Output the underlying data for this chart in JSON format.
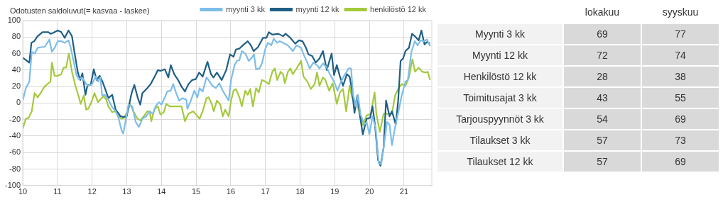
{
  "chart_data": [
    {
      "type": "line",
      "title": "Odotusten saldoluvut(= kasvaa - laskee)",
      "xlim": [
        10,
        21.8
      ],
      "xticks": [
        10,
        11,
        12,
        13,
        14,
        15,
        16,
        17,
        18,
        19,
        20,
        21
      ],
      "ylim": [
        -100,
        100
      ],
      "yticks": [
        -100,
        -80,
        -60,
        -40,
        -20,
        0,
        20,
        40,
        60,
        80,
        100
      ],
      "grid": true,
      "legend": "top",
      "series": [
        {
          "name": "myynti 3 kk",
          "color": "#7dbde8",
          "x": [
            10.0,
            10.09,
            10.19,
            10.26,
            10.35,
            10.43,
            10.57,
            10.63,
            10.74,
            10.77,
            10.84,
            10.92,
            11.01,
            11.11,
            11.21,
            11.32,
            11.38,
            11.45,
            11.55,
            11.62,
            11.72,
            11.83,
            11.89,
            12.0,
            12.1,
            12.17,
            12.24,
            12.29,
            12.37,
            12.47,
            12.58,
            12.68,
            12.75,
            12.85,
            12.9,
            12.99,
            13.05,
            13.16,
            13.26,
            13.35,
            13.45,
            13.56,
            13.66,
            13.76,
            13.83,
            13.93,
            14.0,
            14.1,
            14.17,
            14.27,
            14.34,
            14.41,
            14.51,
            14.61,
            14.72,
            14.75,
            14.85,
            14.95,
            15.04,
            15.1,
            15.19,
            15.3,
            15.36,
            15.47,
            15.57,
            15.67,
            15.77,
            15.84,
            15.94,
            16.01,
            16.11,
            16.18,
            16.25,
            16.32,
            16.42,
            16.52,
            16.59,
            16.67,
            16.73,
            16.83,
            16.9,
            17.0,
            17.07,
            17.17,
            17.24,
            17.34,
            17.41,
            17.51,
            17.65,
            17.79,
            17.9,
            18.03,
            18.1,
            18.21,
            18.28,
            18.38,
            18.49,
            18.56,
            18.66,
            18.77,
            18.87,
            18.98,
            19.08,
            19.15,
            19.24,
            19.33,
            19.4,
            19.47,
            19.53,
            19.61,
            19.67,
            19.74,
            19.85,
            19.92,
            20.0,
            20.09,
            20.18,
            20.27,
            20.34,
            20.42,
            20.51,
            20.58,
            20.65,
            20.74,
            20.83,
            20.93,
            21.04,
            21.11,
            21.21,
            21.31,
            21.39,
            21.48,
            21.57,
            21.66,
            21.75
          ],
          "values": [
            3,
            18,
            26,
            62,
            60,
            67,
            68,
            68,
            75,
            77,
            62,
            67,
            75,
            75,
            73,
            76,
            68,
            54,
            34,
            29,
            31,
            23,
            21,
            23,
            32,
            26,
            31,
            9,
            10,
            4,
            -5,
            -10,
            -16,
            -33,
            -37,
            -16,
            -2,
            -4,
            -23,
            -29,
            -19,
            -16,
            -10,
            -13,
            -4,
            1,
            -2,
            7,
            14,
            15,
            23,
            14,
            3,
            6,
            4,
            -7,
            3,
            15,
            7,
            18,
            14,
            31,
            28,
            21,
            18,
            24,
            15,
            10,
            3,
            28,
            46,
            51,
            52,
            63,
            60,
            51,
            54,
            59,
            41,
            42,
            48,
            66,
            73,
            70,
            78,
            73,
            75,
            73,
            70,
            63,
            70,
            67,
            59,
            49,
            42,
            49,
            46,
            42,
            48,
            43,
            34,
            26,
            15,
            23,
            31,
            37,
            42,
            42,
            10,
            -4,
            10,
            -13,
            -26,
            -23,
            -38,
            -16,
            -30,
            -73,
            -74,
            -51,
            -23,
            -26,
            -51,
            -29,
            -12,
            9,
            26,
            28,
            62,
            75,
            70,
            76,
            75,
            77,
            69
          ]
        },
        {
          "name": "myynti 12 kk",
          "color": "#1f5f85",
          "x": [
            10.0,
            10.19,
            10.25,
            10.33,
            10.43,
            10.57,
            10.74,
            10.8,
            10.87,
            11.01,
            11.11,
            11.21,
            11.32,
            11.42,
            11.49,
            11.59,
            11.66,
            11.72,
            11.81,
            11.87,
            11.96,
            12.05,
            12.13,
            12.22,
            12.3,
            12.37,
            12.47,
            12.58,
            12.68,
            12.82,
            12.92,
            13.0,
            13.14,
            13.22,
            13.32,
            13.39,
            13.45,
            13.59,
            13.69,
            13.83,
            13.9,
            13.97,
            14.1,
            14.2,
            14.27,
            14.37,
            14.48,
            14.58,
            14.68,
            14.78,
            14.89,
            14.99,
            15.09,
            15.19,
            15.33,
            15.43,
            15.5,
            15.6,
            15.74,
            15.87,
            15.98,
            16.08,
            16.15,
            16.25,
            16.35,
            16.49,
            16.58,
            16.66,
            16.79,
            16.93,
            17.03,
            17.1,
            17.2,
            17.37,
            17.51,
            17.58,
            17.72,
            17.86,
            17.97,
            18.07,
            18.17,
            18.24,
            18.35,
            18.45,
            18.56,
            18.66,
            18.77,
            18.91,
            18.98,
            19.06,
            19.15,
            19.24,
            19.35,
            19.43,
            19.5,
            19.57,
            19.65,
            19.74,
            19.81,
            19.92,
            20.02,
            20.09,
            20.16,
            20.25,
            20.32,
            20.41,
            20.48,
            20.58,
            20.65,
            20.76,
            20.83,
            20.9,
            20.97,
            21.04,
            21.14,
            21.23,
            21.31,
            21.42,
            21.5,
            21.59,
            21.66,
            21.75
          ],
          "values": [
            55,
            49,
            73,
            75,
            81,
            86,
            86,
            84,
            85,
            88,
            86,
            79,
            88,
            81,
            62,
            37,
            28,
            36,
            10,
            22,
            22,
            41,
            28,
            33,
            26,
            18,
            6,
            10,
            -8,
            -16,
            -17,
            -16,
            12,
            22,
            6,
            -2,
            12,
            18,
            23,
            34,
            40,
            39,
            41,
            31,
            46,
            35,
            28,
            20,
            14,
            23,
            28,
            29,
            37,
            32,
            50,
            35,
            31,
            37,
            28,
            40,
            59,
            56,
            65,
            66,
            70,
            75,
            70,
            63,
            68,
            79,
            79,
            86,
            83,
            84,
            81,
            84,
            79,
            72,
            76,
            75,
            67,
            59,
            57,
            49,
            54,
            63,
            40,
            60,
            34,
            46,
            32,
            21,
            35,
            32,
            15,
            -12,
            9,
            -19,
            -38,
            -19,
            -18,
            -4,
            -26,
            -69,
            -76,
            -54,
            3,
            -16,
            -10,
            -26,
            3,
            51,
            54,
            63,
            67,
            84,
            81,
            76,
            88,
            71,
            74,
            72
          ]
        },
        {
          "name": "henkilöstö 12 kk",
          "color": "#a4c93c",
          "x": [
            10.0,
            10.09,
            10.17,
            10.26,
            10.34,
            10.43,
            10.53,
            10.63,
            10.74,
            10.8,
            10.84,
            10.92,
            11.01,
            11.11,
            11.18,
            11.25,
            11.33,
            11.42,
            11.52,
            11.62,
            11.67,
            11.76,
            11.83,
            11.89,
            11.98,
            12.07,
            12.17,
            12.27,
            12.34,
            12.41,
            12.47,
            12.58,
            12.68,
            12.75,
            12.85,
            12.92,
            13.02,
            13.1,
            13.19,
            13.31,
            13.39,
            13.49,
            13.59,
            13.66,
            13.71,
            13.8,
            13.9,
            13.97,
            14.07,
            14.14,
            14.24,
            14.34,
            14.48,
            14.58,
            14.68,
            14.78,
            14.92,
            15.02,
            15.1,
            15.19,
            15.3,
            15.36,
            15.45,
            15.51,
            15.6,
            15.7,
            15.77,
            15.84,
            15.94,
            16.01,
            16.08,
            16.15,
            16.25,
            16.32,
            16.42,
            16.49,
            16.56,
            16.64,
            16.73,
            16.81,
            16.9,
            17.0,
            17.1,
            17.2,
            17.27,
            17.34,
            17.44,
            17.51,
            17.56,
            17.65,
            17.72,
            17.79,
            17.9,
            18.03,
            18.1,
            18.21,
            18.31,
            18.42,
            18.49,
            18.56,
            18.66,
            18.73,
            18.84,
            18.94,
            19.06,
            19.15,
            19.24,
            19.33,
            19.43,
            19.5,
            19.64,
            19.81,
            19.92,
            20.04,
            20.15,
            20.2,
            20.3,
            20.41,
            20.55,
            20.65,
            20.74,
            20.84,
            20.93,
            21.04,
            21.14,
            21.24,
            21.32,
            21.42,
            21.52,
            21.63,
            21.68,
            21.75
          ],
          "values": [
            -31,
            -19,
            -18,
            -10,
            12,
            7,
            13,
            20,
            24,
            26,
            49,
            33,
            33,
            35,
            43,
            43,
            60,
            38,
            21,
            7,
            -1,
            9,
            -8,
            -7,
            1,
            12,
            1,
            6,
            8,
            4,
            -4,
            -11,
            -10,
            -16,
            -19,
            -18,
            -10,
            -1,
            -10,
            -19,
            -21,
            -16,
            -10,
            -10,
            -22,
            -7,
            -4,
            -14,
            -11,
            -1,
            -4,
            -4,
            -4,
            -4,
            -22,
            -13,
            -10,
            -15,
            -19,
            -10,
            6,
            7,
            -1,
            -10,
            3,
            -2,
            -16,
            -8,
            -16,
            3,
            15,
            17,
            7,
            -4,
            15,
            10,
            17,
            -4,
            18,
            13,
            28,
            26,
            23,
            38,
            42,
            28,
            38,
            35,
            24,
            38,
            42,
            35,
            42,
            51,
            32,
            26,
            17,
            23,
            37,
            21,
            31,
            28,
            15,
            24,
            -1,
            13,
            17,
            -10,
            21,
            7,
            -1,
            -27,
            -15,
            -13,
            13,
            -13,
            -35,
            -13,
            -13,
            -13,
            9,
            18,
            23,
            21,
            31,
            53,
            38,
            43,
            38,
            37,
            38,
            28
          ]
        }
      ]
    },
    {
      "type": "other",
      "categories": [
        "Myynti 3 kk",
        "Myynti 12 kk",
        "Henkilöstö 12 kk",
        "Toimitusajat 3 kk",
        "Tarjouspyynnöt 3 kk",
        "Tilaukset 3 kk",
        "Tilaukset 12 kk"
      ],
      "data_labels": true,
      "series": [
        {
          "name": "lokakuu",
          "values": [
            69,
            72,
            28,
            43,
            54,
            57,
            57
          ]
        },
        {
          "name": "syyskuu",
          "values": [
            77,
            74,
            38,
            55,
            69,
            73,
            69
          ]
        }
      ]
    }
  ]
}
